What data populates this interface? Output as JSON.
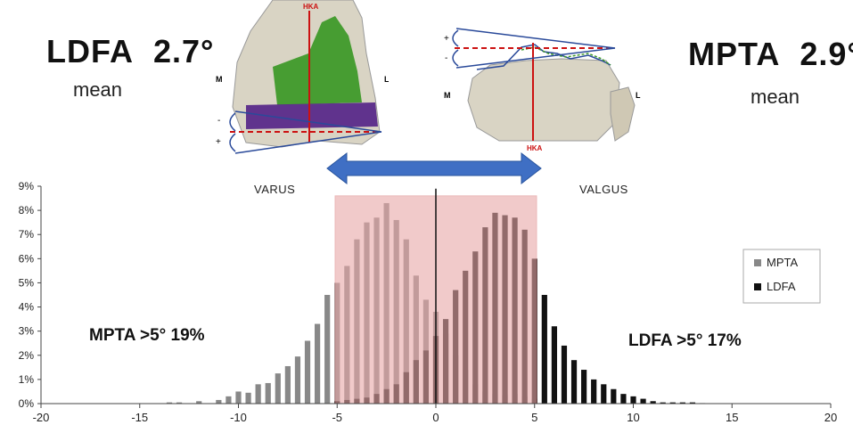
{
  "header": {
    "ldfa_label": "LDFA",
    "ldfa_value": "2.7°",
    "ldfa_sub": "mean",
    "mpta_label": "MPTA",
    "mpta_value": "2.9°",
    "mpta_sub": "mean"
  },
  "illustration": {
    "femur": {
      "axis_label": "HKA",
      "medial": "M",
      "lateral": "L",
      "plus": "+",
      "minus": "-"
    },
    "tibia": {
      "axis_label": "HKA",
      "medial": "M",
      "lateral": "L",
      "plus": "+",
      "minus": "-"
    },
    "colors": {
      "axis": "#cc1111",
      "arrow": "#3f6fc4",
      "femur_green": "#3f9a2a",
      "femur_purple": "#5a2a8a",
      "bone": "#d9d4c4"
    }
  },
  "annotations": {
    "varus": "VARUS",
    "valgus": "VALGUS",
    "mpta_over": "MPTA  >5°   19%",
    "ldfa_over": "LDFA  >5°    17%"
  },
  "chart_data": {
    "type": "bar",
    "ylim": [
      0,
      9
    ],
    "xlim": [
      -20,
      20
    ],
    "x_ticks": [
      -20,
      -15,
      -10,
      -5,
      0,
      5,
      10,
      15,
      20
    ],
    "x_tick_labels": [
      "-20",
      "-15",
      "-10",
      "-5",
      "0",
      "5",
      "10",
      "15",
      "20"
    ],
    "y_ticks": [
      0,
      1,
      2,
      3,
      4,
      5,
      6,
      7,
      8,
      9
    ],
    "y_tick_labels": [
      "0%",
      "1%",
      "2%",
      "3%",
      "4%",
      "5%",
      "6%",
      "7%",
      "8%",
      "9%"
    ],
    "grid": false,
    "legend": "right",
    "shaded_range": [
      -5.1,
      5.1
    ],
    "shaded_color": "#e9a8a8",
    "center_line": 0,
    "series": [
      {
        "name": "MPTA",
        "color": "#888888",
        "x": [
          -13.5,
          -13,
          -12,
          -11,
          -10.5,
          -10,
          -9.5,
          -9,
          -8.5,
          -8,
          -7.5,
          -7,
          -6.5,
          -6,
          -5.5,
          -5,
          -4.5,
          -4,
          -3.5,
          -3,
          -2.5,
          -2,
          -1.5,
          -1,
          -0.5,
          0,
          0.5,
          1,
          1.5,
          2,
          2.5,
          3,
          3.5,
          4,
          4.5,
          5
        ],
        "values": [
          0.05,
          0.05,
          0.1,
          0.15,
          0.3,
          0.5,
          0.45,
          0.8,
          0.85,
          1.25,
          1.55,
          1.95,
          2.6,
          3.3,
          4.5,
          5.0,
          5.7,
          6.8,
          7.5,
          7.7,
          8.3,
          7.6,
          6.8,
          5.3,
          4.3,
          3.8,
          2.9,
          2.0,
          1.4,
          0.8,
          0.5,
          0.4,
          0.35,
          0.4,
          0.3,
          0.2
        ]
      },
      {
        "name": "LDFA",
        "color": "#111111",
        "x": [
          -5,
          -4.5,
          -4,
          -3.5,
          -3,
          -2.5,
          -2,
          -1.5,
          -1,
          -0.5,
          0,
          0.5,
          1,
          1.5,
          2,
          2.5,
          3,
          3.5,
          4,
          4.5,
          5,
          5.5,
          6,
          6.5,
          7,
          7.5,
          8,
          8.5,
          9,
          9.5,
          10,
          10.5,
          11,
          11.5,
          12,
          12.5,
          13,
          13.5
        ],
        "values": [
          0.1,
          0.15,
          0.2,
          0.25,
          0.4,
          0.6,
          0.8,
          1.3,
          1.8,
          2.2,
          2.8,
          3.5,
          4.7,
          5.5,
          6.3,
          7.3,
          7.9,
          7.8,
          7.7,
          7.2,
          6.0,
          4.5,
          3.2,
          2.4,
          1.8,
          1.4,
          1.0,
          0.8,
          0.6,
          0.4,
          0.3,
          0.2,
          0.1,
          0.05,
          0.05,
          0.05,
          0.05,
          0.02
        ]
      }
    ]
  }
}
